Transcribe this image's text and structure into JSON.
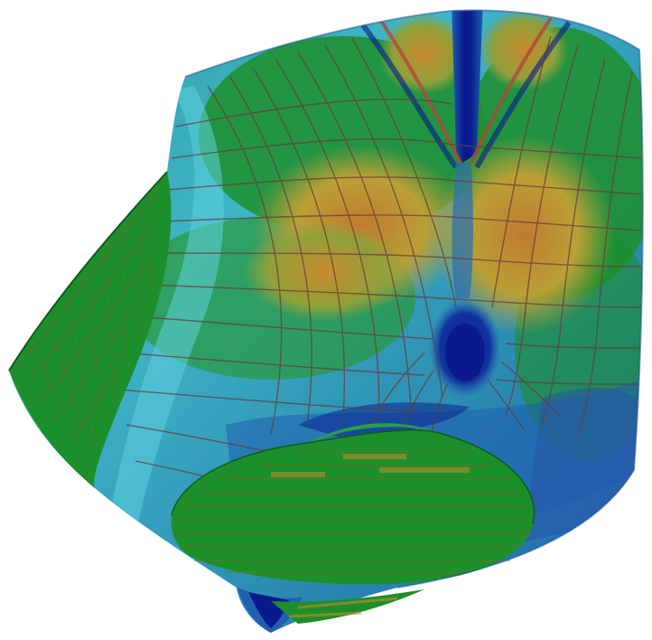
{
  "scene": {
    "subject": "curvature-shaded-surface-render",
    "colors": {
      "background": "#ffffff",
      "deep_blue": "#0a1a8c",
      "mid_blue": "#1f5fb0",
      "cyan": "#3fb5c8",
      "teal": "#2c9a9a",
      "green": "#1d8f2a",
      "dark_green": "#16731f",
      "orange": "#c88a2e",
      "amber": "#b9a035",
      "red": "#b0463a",
      "grid_line": "#6a3a3a"
    }
  }
}
